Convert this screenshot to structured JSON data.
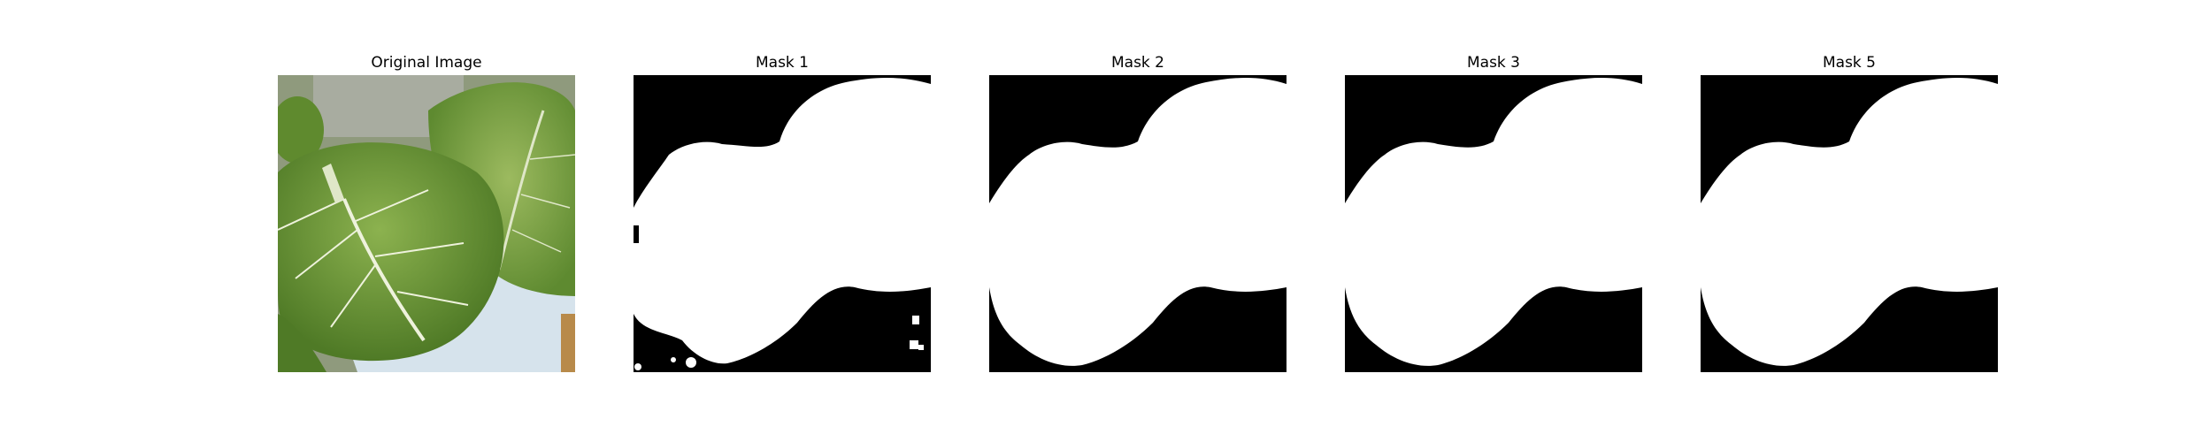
{
  "figure": {
    "panels": [
      {
        "id": "original",
        "title": "Original Image"
      },
      {
        "id": "mask-1",
        "title": "Mask 1"
      },
      {
        "id": "mask-2",
        "title": "Mask 2"
      },
      {
        "id": "mask-3",
        "title": "Mask 3"
      },
      {
        "id": "mask-5",
        "title": "Mask 5"
      }
    ]
  },
  "colors": {
    "mask_foreground": "#ffffff",
    "mask_background": "#000000",
    "leaf": "#6f9a3a",
    "leaf_dark": "#4f7a26",
    "vein": "#e9efd6",
    "pot": "#d6e3ec"
  }
}
